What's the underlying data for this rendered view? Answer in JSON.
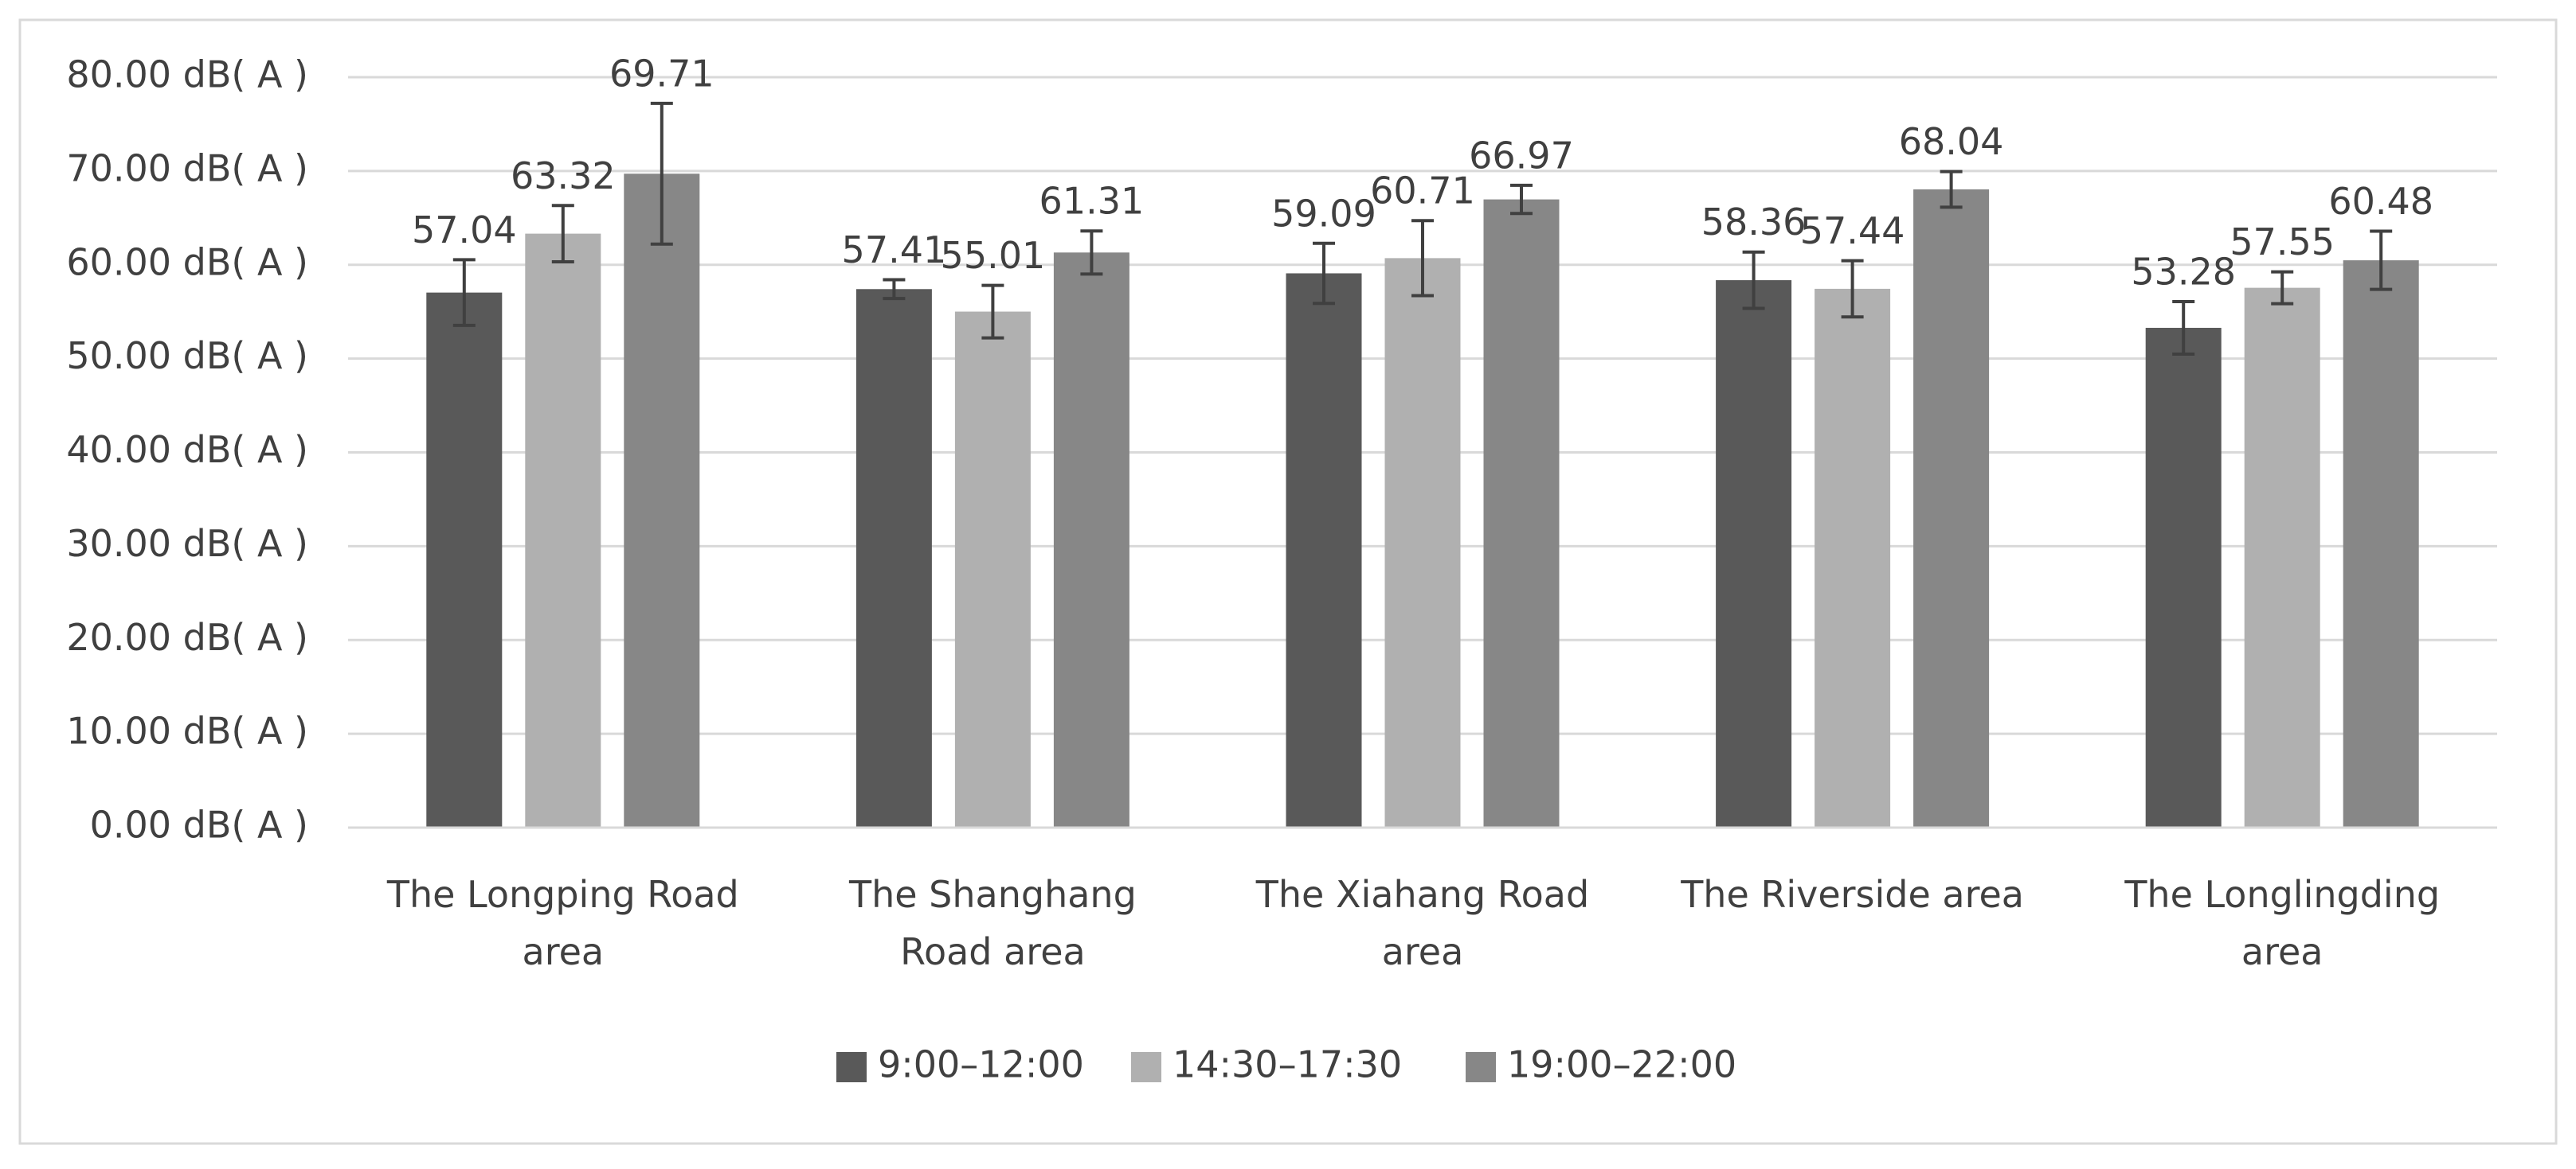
{
  "chart_data": {
    "type": "bar",
    "categories": [
      "The Longping Road area",
      "The Shanghang Road area",
      "The Xiahang Road area",
      "The Riverside area",
      "The Longlingding area"
    ],
    "series": [
      {
        "name": "9:00–12:00",
        "color": "#595959",
        "values": [
          57.04,
          57.41,
          59.09,
          58.36,
          53.28
        ],
        "errors": [
          3.5,
          1.0,
          3.2,
          3.0,
          2.8
        ]
      },
      {
        "name": "14:30–17:30",
        "color": "#b0b0b0",
        "values": [
          63.32,
          55.01,
          60.71,
          57.44,
          57.55
        ],
        "errors": [
          3.0,
          2.8,
          4.0,
          3.0,
          1.7
        ]
      },
      {
        "name": "19:00–22:00",
        "color": "#878787",
        "values": [
          69.71,
          61.31,
          66.97,
          68.04,
          60.48
        ],
        "errors": [
          7.5,
          2.3,
          1.5,
          1.9,
          3.1
        ]
      }
    ],
    "ylim": [
      0,
      80
    ],
    "yticks": [
      {
        "value": 0,
        "label": "0.00 dB( A )"
      },
      {
        "value": 10,
        "label": "10.00 dB( A )"
      },
      {
        "value": 20,
        "label": "20.00 dB( A )"
      },
      {
        "value": 30,
        "label": "30.00 dB( A )"
      },
      {
        "value": 40,
        "label": "40.00 dB( A )"
      },
      {
        "value": 50,
        "label": "50.00 dB( A )"
      },
      {
        "value": 60,
        "label": "60.00 dB( A )"
      },
      {
        "value": 70,
        "label": "70.00 dB( A )"
      },
      {
        "value": 80,
        "label": "80.00 dB( A )"
      }
    ],
    "grid": true,
    "legend": "bottom"
  }
}
